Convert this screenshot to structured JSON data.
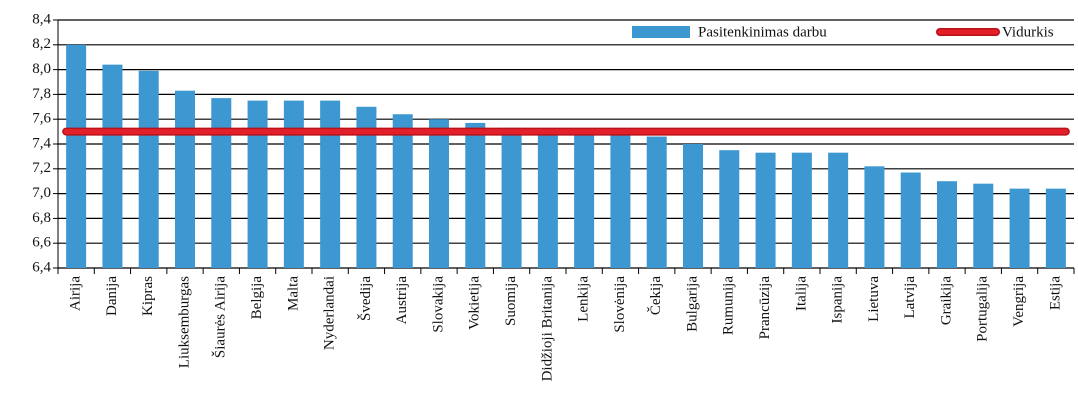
{
  "chart_data": {
    "type": "bar",
    "categories": [
      "Airija",
      "Danija",
      "Kipras",
      "Liuksemburgas",
      "Šiaurės Airija",
      "Belgija",
      "Malta",
      "Nyderlandai",
      "Švedija",
      "Austrija",
      "Slovakija",
      "Vokietija",
      "Suomija",
      "Didžioji Britanija",
      "Lenkija",
      "Slovėnija",
      "Čekija",
      "Bulgarija",
      "Rumunija",
      "Prancūzija",
      "Italija",
      "Ispanija",
      "Lietuva",
      "Latvija",
      "Graikija",
      "Portugalija",
      "Vengrija",
      "Estija"
    ],
    "series": [
      {
        "name": "Pasitenkinimas darbu",
        "type": "bar",
        "color": "#3d97d0",
        "values": [
          8.2,
          8.04,
          7.99,
          7.83,
          7.77,
          7.75,
          7.75,
          7.75,
          7.7,
          7.64,
          7.6,
          7.57,
          7.53,
          7.51,
          7.5,
          7.5,
          7.46,
          7.4,
          7.35,
          7.33,
          7.33,
          7.33,
          7.22,
          7.17,
          7.1,
          7.08,
          7.04,
          7.04
        ]
      },
      {
        "name": "Vidurkis",
        "type": "line",
        "color": "#e3202a",
        "values": [
          7.5,
          7.5,
          7.5,
          7.5,
          7.5,
          7.5,
          7.5,
          7.5,
          7.5,
          7.5,
          7.5,
          7.5,
          7.5,
          7.5,
          7.5,
          7.5,
          7.5,
          7.5,
          7.5,
          7.5,
          7.5,
          7.5,
          7.5,
          7.5,
          7.5,
          7.5,
          7.5,
          7.5
        ]
      }
    ],
    "ylim": [
      6.4,
      8.4
    ],
    "yticks": [
      {
        "value": 6.4,
        "label": "6,4"
      },
      {
        "value": 6.6,
        "label": "6,6"
      },
      {
        "value": 6.8,
        "label": "6,8"
      },
      {
        "value": 7.0,
        "label": "7,0"
      },
      {
        "value": 7.2,
        "label": "7,2"
      },
      {
        "value": 7.4,
        "label": "7,4"
      },
      {
        "value": 7.6,
        "label": "7,6"
      },
      {
        "value": 7.8,
        "label": "7,8"
      },
      {
        "value": 8.0,
        "label": "8,0"
      },
      {
        "value": 8.2,
        "label": "8,2"
      },
      {
        "value": 8.4,
        "label": "8,4"
      }
    ],
    "grid": true,
    "legend": "top-right"
  }
}
